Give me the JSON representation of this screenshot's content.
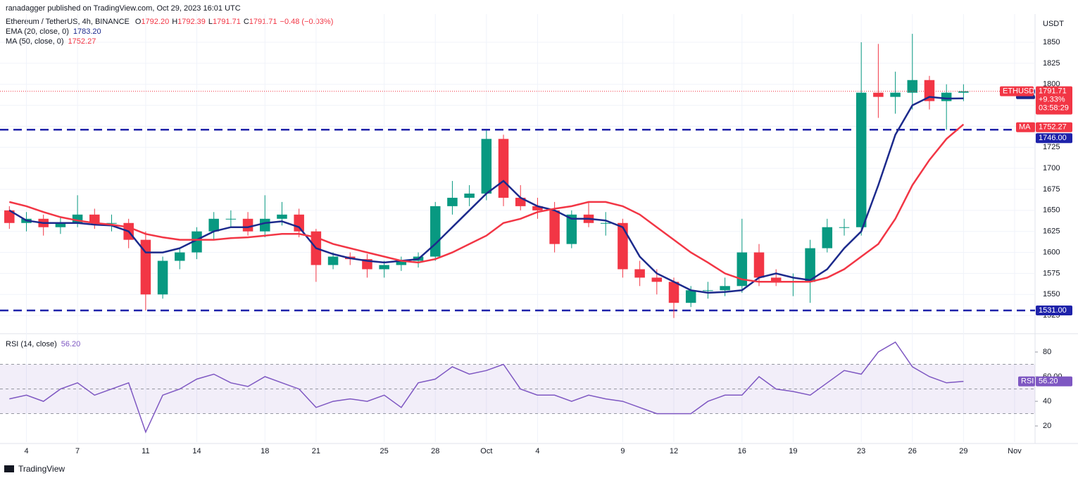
{
  "header": {
    "publisher": "ranadagger published on TradingView.com, Oct 29, 2023 16:01 UTC",
    "symbol": "Ethereum / TetherUS, 4h, BINANCE",
    "legend_fields": [
      [
        "O",
        "1792.20"
      ],
      [
        "H",
        "1792.39"
      ],
      [
        "L",
        "1791.71"
      ],
      [
        "C",
        "1791.71"
      ]
    ],
    "change": "−0.48 (−0.03%)",
    "currency": "USDT",
    "footer": "TradingView"
  },
  "chart_data": [
    {
      "type": "candlestick",
      "symbol_tag": "ETHUSDT",
      "last_price": {
        "value": 1791.71,
        "label": "1791.71"
      },
      "change_pct": "+9.33%",
      "countdown": "03:58:29",
      "x": [
        3,
        4,
        5,
        6,
        7,
        8,
        9,
        10,
        11,
        12,
        13,
        14,
        15,
        16,
        17,
        18,
        19,
        20,
        21,
        22,
        23,
        24,
        25,
        26,
        27,
        28,
        29,
        30,
        31,
        32,
        33,
        34,
        35,
        36,
        37,
        38,
        39,
        40,
        41,
        42,
        43,
        44,
        45,
        46,
        47,
        48,
        49,
        50,
        51,
        52,
        53,
        54,
        55,
        56,
        57,
        58,
        59
      ],
      "open": [
        1650,
        1635,
        1640,
        1630,
        1635,
        1645,
        1635,
        1635,
        1615,
        1550,
        1590,
        1600,
        1625,
        1640,
        1640,
        1625,
        1640,
        1645,
        1625,
        1585,
        1595,
        1592,
        1580,
        1585,
        1590,
        1595,
        1655,
        1665,
        1670,
        1735,
        1665,
        1655,
        1650,
        1610,
        1645,
        1635,
        1635,
        1580,
        1570,
        1565,
        1540,
        1555,
        1555,
        1560,
        1600,
        1570,
        1565,
        1565,
        1605,
        1630,
        1630,
        1790,
        1785,
        1790,
        1805,
        1780,
        1790
      ],
      "high": [
        1655,
        1648,
        1645,
        1642,
        1668,
        1652,
        1645,
        1640,
        1625,
        1595,
        1605,
        1630,
        1648,
        1650,
        1648,
        1668,
        1660,
        1652,
        1628,
        1600,
        1600,
        1598,
        1590,
        1595,
        1600,
        1660,
        1685,
        1680,
        1745,
        1740,
        1680,
        1665,
        1660,
        1650,
        1660,
        1648,
        1640,
        1590,
        1580,
        1570,
        1560,
        1565,
        1570,
        1640,
        1610,
        1580,
        1575,
        1615,
        1640,
        1640,
        1850,
        1848,
        1815,
        1860,
        1810,
        1800,
        1800
      ],
      "low": [
        1628,
        1625,
        1620,
        1622,
        1630,
        1628,
        1625,
        1605,
        1531,
        1545,
        1580,
        1592,
        1615,
        1630,
        1620,
        1618,
        1632,
        1618,
        1565,
        1580,
        1585,
        1570,
        1570,
        1578,
        1582,
        1590,
        1645,
        1655,
        1662,
        1655,
        1650,
        1640,
        1600,
        1605,
        1630,
        1620,
        1570,
        1560,
        1550,
        1522,
        1535,
        1545,
        1548,
        1552,
        1560,
        1560,
        1548,
        1540,
        1600,
        1620,
        1620,
        1760,
        1765,
        1770,
        1770,
        1746,
        1780
      ],
      "close": [
        1635,
        1640,
        1630,
        1635,
        1645,
        1635,
        1635,
        1615,
        1550,
        1590,
        1600,
        1625,
        1640,
        1640,
        1625,
        1640,
        1645,
        1625,
        1585,
        1595,
        1592,
        1580,
        1585,
        1590,
        1595,
        1655,
        1665,
        1670,
        1735,
        1665,
        1655,
        1650,
        1610,
        1645,
        1635,
        1635,
        1580,
        1570,
        1565,
        1540,
        1555,
        1555,
        1560,
        1600,
        1570,
        1565,
        1565,
        1605,
        1630,
        1630,
        1790,
        1785,
        1790,
        1805,
        1780,
        1790,
        1791.71
      ],
      "up_color": "#089981",
      "down_color": "#f23645",
      "series": [
        {
          "name": "EMA (20, close, 0)",
          "tag": "EMA",
          "value_label": "1783.20",
          "color": "#1c2a8c",
          "values": [
            1650,
            1638,
            1635,
            1635,
            1635,
            1633,
            1632,
            1625,
            1600,
            1600,
            1605,
            1615,
            1625,
            1630,
            1630,
            1635,
            1637,
            1630,
            1605,
            1598,
            1593,
            1590,
            1588,
            1590,
            1592,
            1610,
            1630,
            1650,
            1670,
            1685,
            1665,
            1655,
            1650,
            1640,
            1640,
            1638,
            1630,
            1595,
            1575,
            1565,
            1555,
            1552,
            1553,
            1555,
            1570,
            1575,
            1570,
            1567,
            1580,
            1605,
            1625,
            1680,
            1740,
            1775,
            1785,
            1783,
            1783.2
          ]
        },
        {
          "name": "MA (50, close, 0)",
          "tag": "MA",
          "value_label": "1752.27",
          "color": "#f23645",
          "values": [
            1660,
            1655,
            1648,
            1642,
            1638,
            1635,
            1633,
            1630,
            1622,
            1618,
            1615,
            1615,
            1615,
            1617,
            1618,
            1620,
            1622,
            1622,
            1618,
            1610,
            1605,
            1600,
            1595,
            1590,
            1588,
            1592,
            1600,
            1610,
            1620,
            1635,
            1640,
            1648,
            1652,
            1655,
            1660,
            1660,
            1655,
            1645,
            1630,
            1615,
            1600,
            1588,
            1575,
            1568,
            1565,
            1565,
            1565,
            1565,
            1570,
            1580,
            1595,
            1610,
            1640,
            1680,
            1710,
            1735,
            1752.27
          ]
        }
      ],
      "levels": [
        {
          "value": 1746,
          "label": "1746.00"
        },
        {
          "value": 1531,
          "label": "1531.00"
        }
      ],
      "level_color": "#1e22aa",
      "xlim": [
        2.45,
        63.2
      ],
      "ylim": [
        1505,
        1883.5
      ],
      "yticks": [
        1525,
        1550,
        1575,
        1600,
        1625,
        1650,
        1675,
        1700,
        1725,
        1750,
        1775,
        1800,
        1825,
        1850
      ],
      "xticks": [
        4,
        7,
        11,
        14,
        18,
        21,
        25,
        28,
        {
          "value": 31,
          "label": "Oct"
        },
        {
          "value": 34,
          "label": "4"
        },
        {
          "value": 39,
          "label": "9"
        },
        {
          "value": 42,
          "label": "12"
        },
        {
          "value": 46,
          "label": "16"
        },
        {
          "value": 49,
          "label": "19"
        },
        {
          "value": 53,
          "label": "23"
        },
        {
          "value": 56,
          "label": "26"
        },
        {
          "value": 59,
          "label": "29"
        },
        {
          "value": 62,
          "label": "Nov"
        }
      ]
    },
    {
      "type": "line",
      "title": "RSI (14, close)",
      "tag": "RSI",
      "value_label": "56.20",
      "color": "#7e57c2",
      "x": [
        3,
        4,
        5,
        6,
        7,
        8,
        9,
        10,
        11,
        12,
        13,
        14,
        15,
        16,
        17,
        18,
        19,
        20,
        21,
        22,
        23,
        24,
        25,
        26,
        27,
        28,
        29,
        30,
        31,
        32,
        33,
        34,
        35,
        36,
        37,
        38,
        39,
        40,
        41,
        42,
        43,
        44,
        45,
        46,
        47,
        48,
        49,
        50,
        51,
        52,
        53,
        54,
        55,
        56,
        57,
        58,
        59
      ],
      "values": [
        42,
        45,
        40,
        50,
        55,
        45,
        50,
        55,
        15,
        45,
        50,
        58,
        62,
        55,
        52,
        60,
        55,
        50,
        35,
        40,
        42,
        40,
        45,
        35,
        55,
        58,
        68,
        62,
        65,
        70,
        50,
        45,
        45,
        40,
        45,
        42,
        40,
        35,
        30,
        30,
        30,
        40,
        45,
        45,
        60,
        50,
        48,
        45,
        55,
        65,
        62,
        80,
        88,
        68,
        60,
        55,
        56.2
      ],
      "band": [
        30,
        70
      ],
      "midline": 50,
      "xlim": [
        2.45,
        63.2
      ],
      "ylim": [
        6.9,
        94.3
      ],
      "yticks": [
        20,
        40,
        {
          "value": 60,
          "label": "60.00"
        },
        80
      ]
    }
  ]
}
